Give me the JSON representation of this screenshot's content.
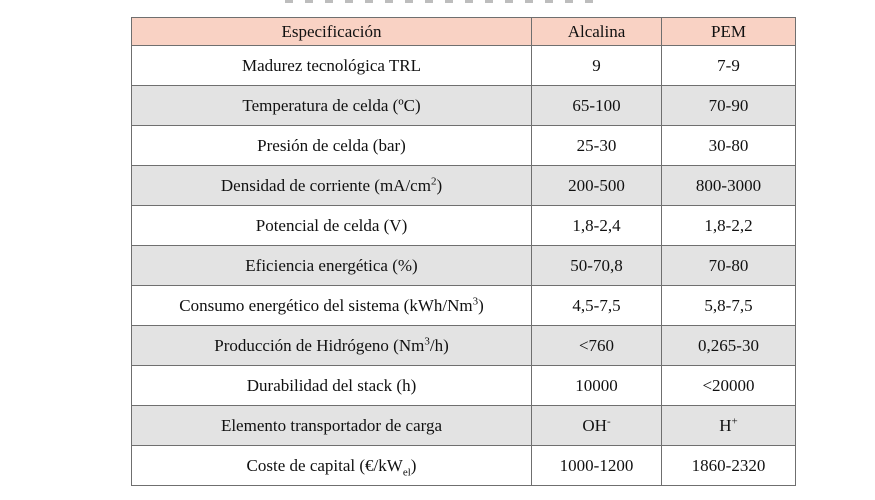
{
  "table": {
    "headers": [
      "Especificación",
      "Alcalina",
      "PEM"
    ],
    "rows": [
      {
        "label": "Madurez tecnológica TRL",
        "alcalina": "9",
        "pem": "7-9"
      },
      {
        "label": "Temperatura de celda (ºC)",
        "alcalina": "65-100",
        "pem": "70-90"
      },
      {
        "label": "Presión de celda (bar)",
        "alcalina": "25-30",
        "pem": "30-80"
      },
      {
        "label": "Densidad de corriente (mA/cm",
        "label_sup": "2",
        "label_end": ")",
        "alcalina": "200-500",
        "pem": "800-3000"
      },
      {
        "label": "Potencial de celda (V)",
        "alcalina": "1,8-2,4",
        "pem": "1,8-2,2"
      },
      {
        "label": "Eficiencia energética (%)",
        "alcalina": "50-70,8",
        "pem": "70-80"
      },
      {
        "label": "Consumo energético del sistema (kWh/Nm",
        "label_sup": "3",
        "label_end": ")",
        "alcalina": "4,5-7,5",
        "pem": "5,8-7,5"
      },
      {
        "label": "Producción de Hidrógeno (Nm",
        "label_sup": "3",
        "label_end": "/h)",
        "alcalina": "<760",
        "pem": "0,265-30"
      },
      {
        "label": "Durabilidad del stack (h)",
        "alcalina": "10000",
        "pem": "<20000"
      },
      {
        "label": "Elemento transportador de carga",
        "alcalina": "OH",
        "alcalina_sup": "-",
        "pem": "H",
        "pem_sup": "+"
      },
      {
        "label": "Coste de capital (€/kW",
        "label_sub": "el",
        "label_end": ")",
        "alcalina": "1000-1200",
        "pem": "1860-2320"
      }
    ]
  }
}
